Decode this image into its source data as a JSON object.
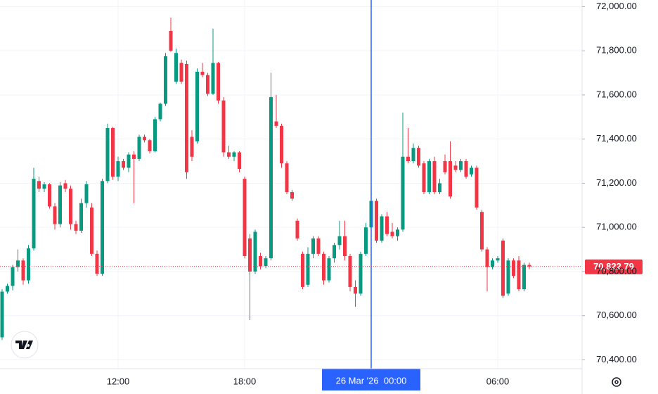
{
  "chart_data": {
    "type": "candlestick",
    "categories": [
      null,
      null,
      null,
      null,
      null,
      null,
      null,
      null,
      null,
      null,
      null,
      null,
      null,
      null,
      null,
      null,
      null,
      null,
      null,
      null,
      null,
      null,
      "12:00",
      null,
      null,
      null,
      null,
      null,
      null,
      null,
      null,
      null,
      null,
      null,
      null,
      null,
      null,
      null,
      null,
      null,
      null,
      null,
      null,
      null,
      null,
      null,
      "18:00",
      null,
      null,
      null,
      null,
      null,
      null,
      null,
      null,
      null,
      null,
      null,
      null,
      null,
      null,
      null,
      null,
      null,
      null,
      null,
      null,
      null,
      null,
      null,
      "26 Mar '26  00:00",
      null,
      null,
      null,
      null,
      null,
      null,
      null,
      null,
      null,
      null,
      null,
      null,
      null,
      null,
      null,
      null,
      null,
      null,
      null,
      null,
      null,
      null,
      null,
      "06:00",
      null,
      null,
      null,
      null,
      null,
      null
    ],
    "open": [
      70502,
      70709,
      70735,
      70820,
      70850,
      70760,
      70905,
      71210,
      71175,
      71195,
      71095,
      71015,
      71200,
      71175,
      71015,
      70985,
      71110,
      71090,
      70880,
      70790,
      71210,
      71450,
      71230,
      71300,
      71270,
      71330,
      71310,
      71410,
      71395,
      71345,
      71490,
      71560,
      71890,
      71660,
      71745,
      71740,
      71410,
      71390,
      71705,
      71690,
      71605,
      71745,
      71575,
      71340,
      71320,
      71340,
      71220,
      70950,
      70800,
      70870,
      70825,
      70860,
      71480,
      71460,
      71290,
      71160,
      71030,
      70880,
      70740,
      70880,
      70950,
      70880,
      70760,
      70860,
      70920,
      70960,
      70870,
      70730,
      70700,
      70880,
      71000,
      71120,
      70940,
      71050,
      70980,
      70960,
      70990,
      71320,
      71300,
      71360,
      71290,
      71160,
      71300,
      71160,
      71300,
      71300,
      71280,
      71260,
      71300,
      71240,
      71270,
      71070,
      70900,
      70820,
      70850,
      70940,
      70700,
      70850,
      70850,
      70720,
      70830
    ],
    "high": [
      70720,
      70745,
      70830,
      70900,
      70860,
      70920,
      71270,
      71230,
      71205,
      71200,
      71110,
      71205,
      71215,
      71190,
      71030,
      71130,
      71210,
      71110,
      70895,
      71220,
      71470,
      71455,
      71320,
      71310,
      71340,
      71345,
      71420,
      71420,
      71400,
      71500,
      71565,
      71790,
      71950,
      71810,
      71760,
      71755,
      71440,
      71720,
      71745,
      71700,
      71900,
      71750,
      71590,
      71370,
      71345,
      71345,
      71230,
      70970,
      70990,
      70885,
      70870,
      71700,
      71600,
      71470,
      71300,
      71170,
      71040,
      70890,
      70910,
      70960,
      70960,
      70890,
      70870,
      70930,
      71030,
      71030,
      70880,
      70760,
      70890,
      71020,
      71130,
      71130,
      71060,
      71070,
      71020,
      71000,
      71520,
      71450,
      71380,
      71370,
      71300,
      71310,
      71320,
      71220,
      71330,
      71390,
      71300,
      71310,
      71310,
      71280,
      71280,
      71080,
      70910,
      70860,
      70870,
      70950,
      70860,
      70860,
      70870,
      70840,
      70840
    ],
    "low": [
      70490,
      70700,
      70715,
      70800,
      70740,
      70745,
      70895,
      71160,
      71160,
      71085,
      70990,
      71000,
      71160,
      70990,
      70970,
      70975,
      71090,
      70870,
      70780,
      70780,
      71200,
      71215,
      71210,
      71260,
      71250,
      71110,
      71300,
      71385,
      71335,
      71340,
      71480,
      71550,
      71795,
      71650,
      71650,
      71220,
      71300,
      71380,
      71680,
      71595,
      71600,
      71560,
      71320,
      71310,
      71300,
      71250,
      70860,
      70580,
      70790,
      70810,
      70815,
      70850,
      71450,
      71270,
      71150,
      71120,
      70940,
      70720,
      70730,
      70860,
      70870,
      70740,
      70750,
      70840,
      70900,
      70850,
      70710,
      70640,
      70690,
      70870,
      70990,
      70930,
      70930,
      70960,
      70950,
      70940,
      70980,
      71290,
      71290,
      71270,
      71150,
      71150,
      71150,
      71150,
      71240,
      71130,
      71250,
      71250,
      71220,
      71230,
      71080,
      70890,
      70710,
      70810,
      70840,
      70680,
      70690,
      70770,
      70710,
      70710,
      70810
    ],
    "close": [
      70709,
      70735,
      70820,
      70850,
      70760,
      70905,
      71220,
      71175,
      71195,
      71095,
      71015,
      71190,
      71175,
      71015,
      70985,
      71110,
      71195,
      70880,
      70790,
      71210,
      71450,
      71230,
      71300,
      71270,
      71330,
      71310,
      71410,
      71395,
      71345,
      71490,
      71560,
      71775,
      71800,
      71790,
      71660,
      71250,
      71320,
      71705,
      71690,
      71605,
      71745,
      71575,
      71340,
      71320,
      71340,
      71265,
      70870,
      70800,
      70980,
      70825,
      70860,
      71590,
      71460,
      71290,
      71160,
      71130,
      70950,
      70730,
      70880,
      70950,
      70880,
      70760,
      70860,
      70920,
      70960,
      70870,
      70730,
      70700,
      70880,
      71000,
      71120,
      70940,
      71050,
      70970,
      70960,
      70990,
      71320,
      71300,
      71360,
      71280,
      71160,
      71300,
      71160,
      71200,
      71250,
      71140,
      71260,
      71300,
      71230,
      71270,
      71090,
      70900,
      70820,
      70850,
      70860,
      70690,
      70850,
      70780,
      70720,
      70830,
      70822.79
    ],
    "up_color": "#089981",
    "down_color": "#f23645",
    "ylim": [
      70360,
      72030
    ],
    "yticks": [
      {
        "value": 70400,
        "label": "70,400.00"
      },
      {
        "value": 70600,
        "label": "70,600.00"
      },
      {
        "value": 70800,
        "label": "70,800.00"
      },
      {
        "value": 71000,
        "label": "71,000.00"
      },
      {
        "value": 71200,
        "label": "71,200.00"
      },
      {
        "value": 71400,
        "label": "71,400.00"
      },
      {
        "value": 71600,
        "label": "71,600.00"
      },
      {
        "value": 71800,
        "label": "71,800.00"
      },
      {
        "value": 72000,
        "label": "72,000.00"
      }
    ],
    "grid": true,
    "crosshair_index": 70,
    "last_price": {
      "value": 70822.79,
      "label": "70,822.79"
    }
  }
}
